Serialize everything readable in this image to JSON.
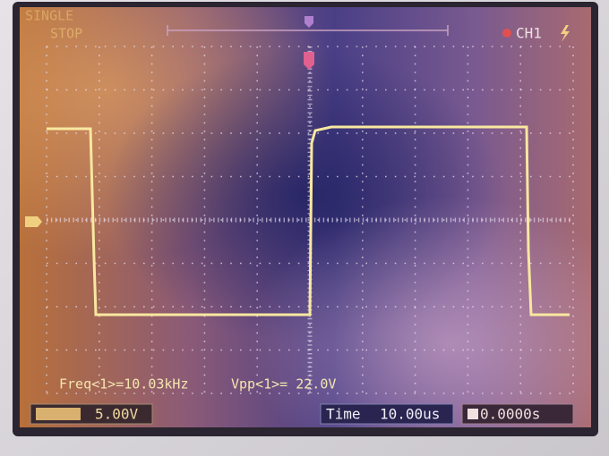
{
  "status": {
    "mode": "SINGLE",
    "state": "STOP",
    "channel": "CH1"
  },
  "measurements": {
    "freq": "Freq<1>=10.03kHz",
    "vpp": "Vpp<1>= 22.0V"
  },
  "footer": {
    "volts_per_div": "5.00V",
    "time_label": "Time",
    "time_per_div": "10.00us",
    "trigger_delay": "0.0000s"
  }
}
